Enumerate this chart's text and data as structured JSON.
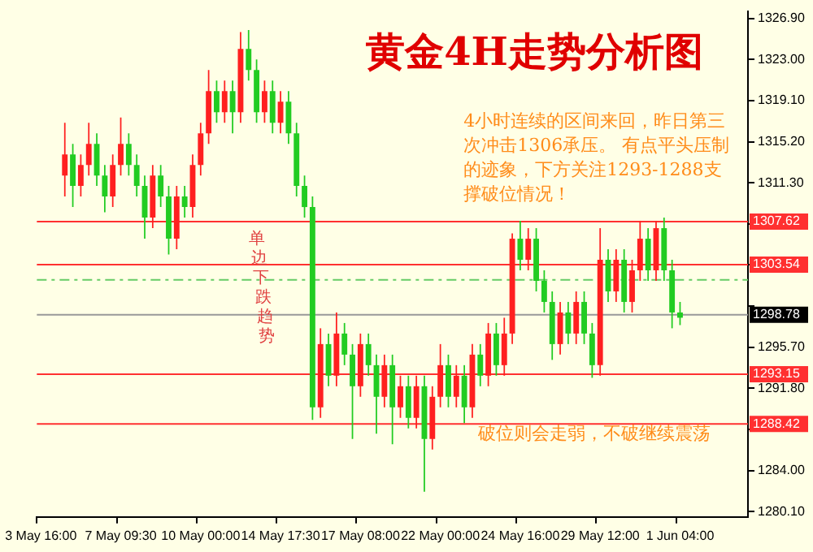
{
  "chart_data": {
    "type": "candlestick",
    "title": "黄金4H走势分析图",
    "categories": [
      "3 May 16:00",
      null,
      null,
      null,
      null,
      null,
      null,
      null,
      null,
      null,
      "7 May 09:30",
      null,
      null,
      null,
      null,
      null,
      null,
      null,
      null,
      null,
      "10 May 00:00",
      null,
      null,
      null,
      null,
      null,
      null,
      null,
      null,
      null,
      "14 May 17:30",
      null,
      null,
      null,
      null,
      null,
      null,
      null,
      null,
      null,
      "17 May 08:00",
      null,
      null,
      null,
      null,
      null,
      null,
      null,
      null,
      null,
      "22 May 00:00",
      null,
      null,
      null,
      null,
      null,
      null,
      null,
      null,
      null,
      "24 May 16:00",
      null,
      null,
      null,
      null,
      null,
      null,
      null,
      null,
      null,
      "29 May 12:00",
      null,
      null,
      null,
      null,
      null,
      null,
      null,
      null,
      null,
      "1 Jun 04:00",
      null,
      null,
      null,
      null,
      null,
      null,
      null,
      null
    ],
    "ohlc": [
      null,
      null,
      null,
      [
        1312,
        1317,
        1310,
        1314
      ],
      [
        1314,
        1315,
        1309,
        1311
      ],
      [
        1311,
        1314,
        1310,
        1313
      ],
      [
        1313,
        1317,
        1312,
        1315
      ],
      [
        1315,
        1316,
        1311,
        1312
      ],
      [
        1312,
        1313,
        1308.5,
        1310
      ],
      [
        1310,
        1314,
        1309,
        1313
      ],
      [
        1313,
        1317.5,
        1312,
        1315
      ],
      [
        1315,
        1316,
        1312,
        1313
      ],
      [
        1313,
        1314,
        1310,
        1311
      ],
      [
        1311,
        1312,
        1306,
        1308
      ],
      [
        1308,
        1313,
        1307,
        1312
      ],
      [
        1312,
        1313,
        1309,
        1310
      ],
      [
        1310,
        1311,
        1304.5,
        1306
      ],
      [
        1306,
        1311,
        1305,
        1310
      ],
      [
        1310,
        1311,
        1308,
        1309
      ],
      [
        1309,
        1314,
        1308,
        1313
      ],
      [
        1313,
        1317,
        1312,
        1316
      ],
      [
        1316,
        1322,
        1315,
        1320
      ],
      [
        1320,
        1321,
        1317,
        1318
      ],
      [
        1318,
        1321,
        1317,
        1320
      ],
      [
        1320,
        1321,
        1316,
        1318
      ],
      [
        1318,
        1325.6,
        1317,
        1324
      ],
      [
        1324,
        1325.8,
        1321,
        1322
      ],
      [
        1322,
        1323,
        1317,
        1318
      ],
      [
        1318,
        1321,
        1317,
        1320
      ],
      [
        1320,
        1321,
        1316,
        1317
      ],
      [
        1317,
        1320,
        1316,
        1319
      ],
      [
        1319,
        1320,
        1315,
        1316
      ],
      [
        1316,
        1317,
        1310,
        1311
      ],
      [
        1311,
        1312,
        1308,
        1309
      ],
      [
        1309,
        1310,
        1288.8,
        1290
      ],
      [
        1290,
        1297.5,
        1289,
        1296
      ],
      [
        1296,
        1297,
        1292,
        1293
      ],
      [
        1293,
        1299,
        1292,
        1297
      ],
      [
        1297,
        1298,
        1294,
        1295
      ],
      [
        1295,
        1296,
        1287,
        1292
      ],
      [
        1292,
        1297,
        1291,
        1296
      ],
      [
        1296,
        1297,
        1293,
        1294
      ],
      [
        1294,
        1295,
        1287.5,
        1291
      ],
      [
        1291,
        1295,
        1290,
        1294
      ],
      [
        1294,
        1295,
        1286.5,
        1290
      ],
      [
        1290,
        1293,
        1289,
        1292
      ],
      [
        1292,
        1293,
        1288,
        1289
      ],
      [
        1289,
        1293,
        1288,
        1292
      ],
      [
        1292,
        1293,
        1282,
        1287
      ],
      [
        1287,
        1292,
        1286,
        1291
      ],
      [
        1291,
        1296,
        1290,
        1294
      ],
      [
        1294,
        1295,
        1290,
        1291
      ],
      [
        1291,
        1294,
        1290,
        1293
      ],
      [
        1293,
        1294,
        1288.5,
        1290
      ],
      [
        1290,
        1296,
        1289,
        1295
      ],
      [
        1295,
        1296,
        1292,
        1293
      ],
      [
        1293,
        1298,
        1292,
        1297
      ],
      [
        1297,
        1298,
        1293,
        1294
      ],
      [
        1294,
        1298.5,
        1293,
        1297
      ],
      [
        1297,
        1306.5,
        1296,
        1306
      ],
      [
        1306,
        1307.7,
        1303,
        1304
      ],
      [
        1304,
        1307,
        1303,
        1306
      ],
      [
        1306,
        1307,
        1301,
        1302
      ],
      [
        1302,
        1303,
        1299,
        1300
      ],
      [
        1300,
        1301,
        1294.5,
        1296
      ],
      [
        1296,
        1300,
        1295,
        1299
      ],
      [
        1299,
        1300,
        1296,
        1297
      ],
      [
        1297,
        1301,
        1296,
        1300
      ],
      [
        1300,
        1301,
        1296,
        1297
      ],
      [
        1297,
        1298,
        1292.8,
        1294
      ],
      [
        1294,
        1307,
        1293,
        1304
      ],
      [
        1304,
        1305,
        1300,
        1301
      ],
      [
        1301,
        1305,
        1300,
        1304
      ],
      [
        1304,
        1305,
        1299,
        1300
      ],
      [
        1300,
        1304,
        1299,
        1303
      ],
      [
        1303,
        1307.7,
        1302,
        1306
      ],
      [
        1306,
        1307,
        1302,
        1303
      ],
      [
        1303,
        1307.7,
        1302,
        1307
      ],
      [
        1307,
        1308,
        1302,
        1303
      ],
      [
        1303,
        1304,
        1297.5,
        1299
      ],
      [
        1299,
        1300,
        1297.8,
        1298.5
      ],
      null,
      null,
      null,
      null,
      null,
      null,
      null,
      null
    ],
    "colors": [
      null,
      null,
      null,
      "#ff2020",
      "#22cc22",
      "#ff2020",
      "#ff2020",
      "#22cc22",
      "#22cc22",
      "#ff2020",
      "#ff2020",
      "#22cc22",
      "#22cc22",
      "#22cc22",
      "#ff2020",
      "#22cc22",
      "#22cc22",
      "#ff2020",
      "#22cc22",
      "#ff2020",
      "#ff2020",
      "#ff2020",
      "#22cc22",
      "#ff2020",
      "#22cc22",
      "#ff2020",
      "#22cc22",
      "#22cc22",
      "#ff2020",
      "#22cc22",
      "#ff2020",
      "#22cc22",
      "#22cc22",
      "#22cc22",
      "#22cc22",
      "#ff2020",
      "#22cc22",
      "#ff2020",
      "#22cc22",
      "#22cc22",
      "#ff2020",
      "#22cc22",
      "#22cc22",
      "#ff2020",
      "#22cc22",
      "#ff2020",
      "#22cc22",
      "#ff2020",
      "#22cc22",
      "#ff2020",
      "#ff2020",
      "#22cc22",
      "#ff2020",
      "#22cc22",
      "#ff2020",
      "#22cc22",
      "#ff2020",
      "#22cc22",
      "#ff2020",
      "#ff2020",
      "#22cc22",
      "#ff2020",
      "#22cc22",
      "#22cc22",
      "#22cc22",
      "#ff2020",
      "#22cc22",
      "#ff2020",
      "#22cc22",
      "#22cc22",
      "#ff2020",
      "#22cc22",
      "#ff2020",
      "#22cc22",
      "#ff2020",
      "#ff2020",
      "#22cc22",
      "#ff2020",
      "#22cc22",
      "#22cc22",
      "#22cc22",
      null,
      null,
      null,
      null,
      null,
      null,
      null,
      null
    ],
    "ylim": [
      1279.6,
      1327.6
    ],
    "yticks": [
      {
        "value": 1280.1,
        "label": "1280.10"
      },
      {
        "value": 1284,
        "label": "1284.00"
      },
      {
        "value": 1287.9,
        "label": null
      },
      {
        "value": 1291.8,
        "label": "1291.80"
      },
      {
        "value": 1295.7,
        "label": "1295.70"
      },
      {
        "value": 1299.6,
        "label": null
      },
      {
        "value": 1303.5,
        "label": null
      },
      {
        "value": 1307.4,
        "label": null
      },
      {
        "value": 1311.3,
        "label": "1311.30"
      },
      {
        "value": 1315.2,
        "label": "1315.20"
      },
      {
        "value": 1319.1,
        "label": "1319.10"
      },
      {
        "value": 1323,
        "label": "1323.00"
      },
      {
        "value": 1326.9,
        "label": "1326.90"
      }
    ],
    "ref_lines": [
      {
        "axis": "y",
        "value": 1307.62,
        "label": "1307.62",
        "color": "#ff3030"
      },
      {
        "axis": "y",
        "value": 1303.54,
        "label": "1303.54",
        "color": "#ff3030"
      },
      {
        "axis": "y",
        "value": 1302.1,
        "label": null,
        "color": "#66cc66",
        "line_style": "dashed"
      },
      {
        "axis": "y",
        "value": 1298.78,
        "label": "1298.78",
        "color": "#999999"
      },
      {
        "axis": "y",
        "value": 1293.15,
        "label": "1293.15",
        "color": "#ff3030"
      },
      {
        "axis": "y",
        "value": 1288.42,
        "label": "1288.42",
        "color": "#ff3030"
      }
    ],
    "annotations": [
      "4小时连续的区间来回，昨日第三次冲击1306承压。 有点平头压制的迹象，下方关注1293-1288支撑破位情况！",
      "破位则会走弱，不破继续震荡",
      "单边下跌趋势"
    ],
    "grid": false,
    "legend": false
  }
}
